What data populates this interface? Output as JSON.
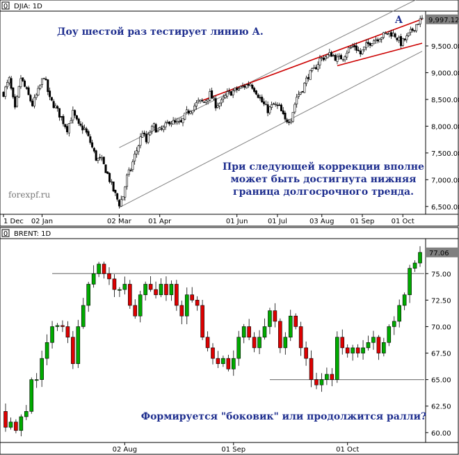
{
  "chart_data": [
    {
      "type": "candlestick",
      "title": "DJIA: 1D",
      "last_price": "9,997.12",
      "y_ticks": [
        "9,500.00",
        "9,000.00",
        "8,500.00",
        "8,000.00",
        "7,500.00",
        "7,000.00",
        "6,500.00"
      ],
      "y_tick_values": [
        9500,
        9000,
        8500,
        8000,
        7500,
        7000,
        6500
      ],
      "ylim": [
        6380,
        10150
      ],
      "x_ticks": [
        "1 Dec",
        "02 Jan",
        "02 Mar",
        "01 Apr",
        "01 Jun",
        "01 Jul",
        "03 Aug",
        "01 Sep",
        "01 Oct"
      ],
      "x_tick_index": [
        0,
        20,
        60,
        81,
        121,
        142,
        165,
        186,
        207
      ],
      "n_bars": 218,
      "close_path": [
        [
          0,
          8620
        ],
        [
          3,
          8870
        ],
        [
          6,
          8300
        ],
        [
          9,
          8900
        ],
        [
          12,
          8650
        ],
        [
          15,
          8400
        ],
        [
          18,
          8650
        ],
        [
          21,
          8950
        ],
        [
          24,
          8500
        ],
        [
          27,
          8350
        ],
        [
          30,
          8150
        ],
        [
          33,
          7950
        ],
        [
          36,
          8250
        ],
        [
          39,
          8000
        ],
        [
          42,
          7950
        ],
        [
          45,
          7700
        ],
        [
          48,
          7400
        ],
        [
          51,
          7350
        ],
        [
          54,
          7100
        ],
        [
          57,
          6800
        ],
        [
          60,
          6550
        ],
        [
          62,
          6700
        ],
        [
          64,
          7050
        ],
        [
          66,
          7200
        ],
        [
          68,
          7450
        ],
        [
          70,
          7650
        ],
        [
          72,
          7900
        ],
        [
          74,
          7700
        ],
        [
          76,
          7900
        ],
        [
          78,
          8000
        ],
        [
          80,
          7900
        ],
        [
          83,
          7950
        ],
        [
          86,
          8100
        ],
        [
          89,
          8050
        ],
        [
          92,
          8050
        ],
        [
          95,
          8250
        ],
        [
          98,
          8350
        ],
        [
          101,
          8450
        ],
        [
          104,
          8450
        ],
        [
          107,
          8600
        ],
        [
          110,
          8400
        ],
        [
          113,
          8450
        ],
        [
          116,
          8600
        ],
        [
          119,
          8650
        ],
        [
          122,
          8700
        ],
        [
          125,
          8750
        ],
        [
          128,
          8800
        ],
        [
          131,
          8650
        ],
        [
          134,
          8450
        ],
        [
          137,
          8300
        ],
        [
          140,
          8400
        ],
        [
          143,
          8350
        ],
        [
          146,
          8100
        ],
        [
          149,
          8150
        ],
        [
          152,
          8550
        ],
        [
          155,
          8700
        ],
        [
          158,
          8950
        ],
        [
          161,
          9050
        ],
        [
          164,
          9250
        ],
        [
          167,
          9300
        ],
        [
          170,
          9350
        ],
        [
          173,
          9250
        ],
        [
          176,
          9300
        ],
        [
          179,
          9450
        ],
        [
          182,
          9500
        ],
        [
          185,
          9350
        ],
        [
          188,
          9500
        ],
        [
          191,
          9600
        ],
        [
          194,
          9650
        ],
        [
          197,
          9700
        ],
        [
          200,
          9750
        ],
        [
          203,
          9700
        ],
        [
          206,
          9550
        ],
        [
          209,
          9650
        ],
        [
          212,
          9800
        ],
        [
          215,
          9950
        ],
        [
          217,
          9997
        ]
      ],
      "trend_lines": [
        {
          "name": "upper-channel",
          "color": "#808080",
          "points": [
            [
              60,
              7600
            ],
            [
              217,
              10420
            ]
          ]
        },
        {
          "name": "lower-channel",
          "color": "#808080",
          "points": [
            [
              60,
              6480
            ],
            [
              217,
              9400
            ]
          ]
        },
        {
          "name": "line-A",
          "color": "#cc0000",
          "points": [
            [
              103,
              8480
            ],
            [
              217,
              10000
            ]
          ]
        },
        {
          "name": "support-red",
          "color": "#cc0000",
          "points": [
            [
              173,
              9130
            ],
            [
              217,
              9550
            ]
          ]
        }
      ],
      "line_label": "A",
      "annotations": [
        "Доу шестой раз тестирует линию А.",
        "При следующей коррекции вполне",
        "может быть достигнута нижняя",
        "граница долгосрочного тренда."
      ],
      "watermark": "forexpf.ru",
      "colors": {
        "up": "#ffffff",
        "down": "#000000",
        "wick": "#000000",
        "red_line": "#cc0000",
        "grey_line": "#808080"
      }
    },
    {
      "type": "candlestick",
      "title": "BRENT: 1D",
      "last_price": "77.06",
      "y_ticks": [
        "75.00",
        "72.50",
        "70.00",
        "67.50",
        "65.00",
        "62.50",
        "60.00"
      ],
      "y_tick_values": [
        75,
        72.5,
        70,
        67.5,
        65,
        62.5,
        60
      ],
      "ylim": [
        59.2,
        78.3
      ],
      "x_ticks": [
        "02 Aug",
        "01 Sep",
        "01 Oct"
      ],
      "x_tick_index": [
        23,
        44,
        66
      ],
      "n_bars": 81,
      "candles": [
        [
          62,
          60.5
        ],
        [
          60.5,
          61
        ],
        [
          61,
          60.2
        ],
        [
          60.2,
          61.5
        ],
        [
          61.5,
          62
        ],
        [
          62,
          65
        ],
        [
          65,
          65
        ],
        [
          65,
          67
        ],
        [
          67,
          68.5
        ],
        [
          68.5,
          70
        ],
        [
          70,
          70.1
        ],
        [
          70.1,
          70
        ],
        [
          70,
          69
        ],
        [
          69,
          66.5
        ],
        [
          66.5,
          70
        ],
        [
          70,
          72
        ],
        [
          72,
          74
        ],
        [
          74,
          75
        ],
        [
          75,
          75.9
        ],
        [
          75.9,
          75
        ],
        [
          75,
          74.5
        ],
        [
          74.5,
          73.5
        ],
        [
          73.5,
          73.5
        ],
        [
          73.5,
          74
        ],
        [
          74,
          72
        ],
        [
          72,
          71
        ],
        [
          71,
          73
        ],
        [
          73,
          74
        ],
        [
          74,
          73.5
        ],
        [
          73.5,
          73
        ],
        [
          73,
          74
        ],
        [
          74,
          73
        ],
        [
          73,
          74
        ],
        [
          74,
          72
        ],
        [
          72,
          71
        ],
        [
          71,
          73
        ],
        [
          73,
          72.5
        ],
        [
          72.5,
          72
        ],
        [
          72,
          69
        ],
        [
          69,
          68
        ],
        [
          68,
          67
        ],
        [
          67,
          66.5
        ],
        [
          66.5,
          67
        ],
        [
          67,
          66
        ],
        [
          66,
          67
        ],
        [
          67,
          69
        ],
        [
          69,
          70
        ],
        [
          70,
          69
        ],
        [
          69,
          68
        ],
        [
          68,
          69
        ],
        [
          69,
          70
        ],
        [
          70,
          71.5
        ],
        [
          71.5,
          70.5
        ],
        [
          70.5,
          68
        ],
        [
          68,
          69
        ],
        [
          69,
          71
        ],
        [
          71,
          70
        ],
        [
          70,
          68
        ],
        [
          68,
          67
        ],
        [
          67,
          65
        ],
        [
          65,
          64.5
        ],
        [
          64.5,
          65
        ],
        [
          65,
          65.5
        ],
        [
          65.5,
          65
        ],
        [
          65,
          69
        ],
        [
          69,
          68
        ],
        [
          68,
          67.5
        ],
        [
          67.5,
          68
        ],
        [
          68,
          67.5
        ],
        [
          67.5,
          68
        ],
        [
          68,
          68.5
        ],
        [
          68.5,
          69
        ],
        [
          69,
          67.5
        ],
        [
          67.5,
          68.5
        ],
        [
          68.5,
          70
        ],
        [
          70,
          70.5
        ],
        [
          70.5,
          72
        ],
        [
          72,
          73
        ],
        [
          73,
          75.5
        ],
        [
          75.5,
          76
        ],
        [
          76,
          77
        ]
      ],
      "levels": [
        {
          "name": "resistance-line",
          "value": 75,
          "from_index": 9,
          "to_index": 81
        },
        {
          "name": "support-line",
          "value": 65,
          "from_index": 51,
          "to_index": 81
        }
      ],
      "annotations": [
        "Формируется \"боковик\" или продолжится ралли?"
      ],
      "colors": {
        "up": "#00aa00",
        "down": "#dd0000",
        "wick": "#000000",
        "level_line": "#808080"
      }
    }
  ]
}
